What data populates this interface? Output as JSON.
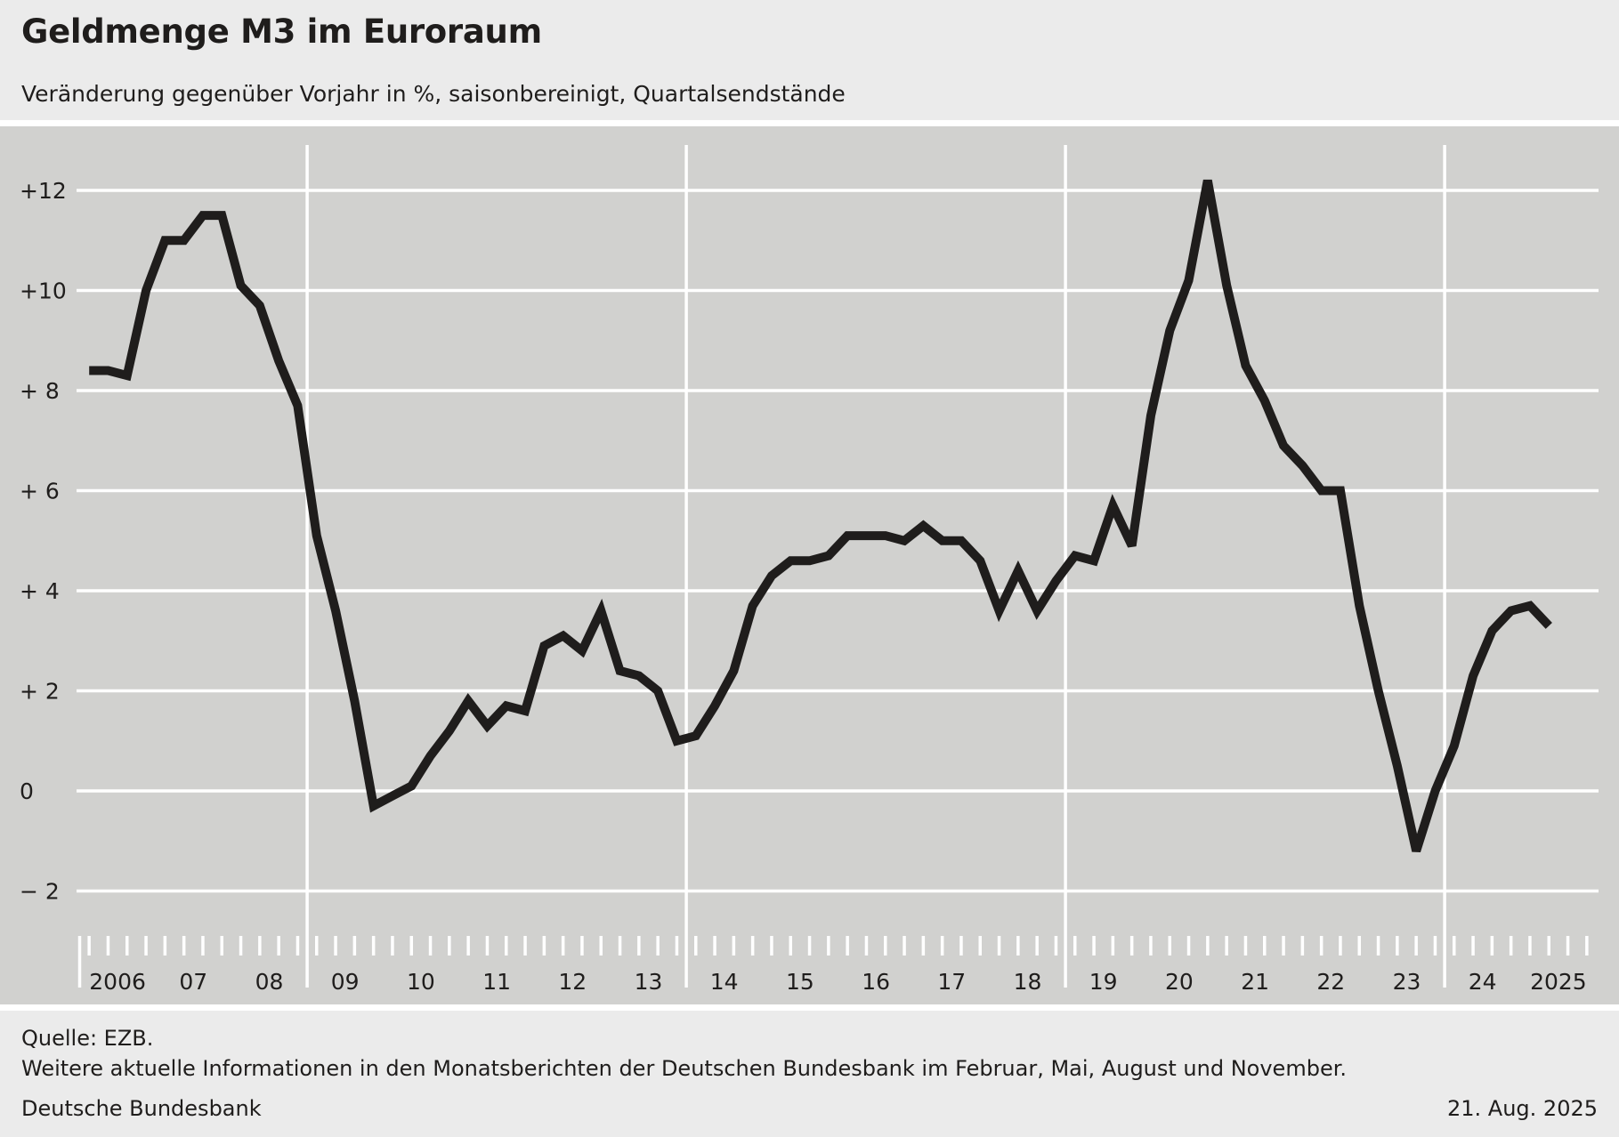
{
  "header": {
    "title": "Geldmenge M3 im Euroraum",
    "subtitle": "Veränderung gegenüber Vorjahr in %, saisonbereinigt, Quartalsendstände"
  },
  "footer": {
    "source": "Quelle: EZB.",
    "note": "Weitere aktuelle Informationen in den Monatsberichten der Deutschen Bundesbank im Februar, Mai, August und November.",
    "publisher": "Deutsche Bundesbank",
    "date": "21. Aug. 2025"
  },
  "chart_data": {
    "type": "line",
    "frequency": "quarterly",
    "title": "Geldmenge M3 im Euroraum",
    "subtitle": "Veränderung gegenüber Vorjahr in %, saisonbereinigt, Quartalsendstände",
    "ylim": [
      -3.2,
      13.0
    ],
    "yticks": [
      {
        "value": 12,
        "label": "+12"
      },
      {
        "value": 10,
        "label": "+10"
      },
      {
        "value": 8,
        "label": "+  8"
      },
      {
        "value": 6,
        "label": "+  6"
      },
      {
        "value": 4,
        "label": "+  4"
      },
      {
        "value": 2,
        "label": "+  2"
      },
      {
        "value": 0,
        "label": "0"
      },
      {
        "value": -2,
        "label": "−  2"
      }
    ],
    "year_labels": [
      "2006",
      "07",
      "08",
      "09",
      "10",
      "11",
      "12",
      "13",
      "14",
      "15",
      "16",
      "17",
      "18",
      "19",
      "20",
      "21",
      "22",
      "23",
      "24",
      "2025"
    ],
    "vertical_gridlines_after_years": [
      "08",
      "13",
      "18",
      "23"
    ],
    "grid": true,
    "line_color": "#1f1d1c",
    "plot_background": "#d1d1cf",
    "grid_color": "#ffffff",
    "series": [
      {
        "x": [
          "2006Q1",
          "2006Q2",
          "2006Q3",
          "2006Q4",
          "2007Q1",
          "2007Q2",
          "2007Q3",
          "2007Q4",
          "2008Q1",
          "2008Q2",
          "2008Q3",
          "2008Q4",
          "2009Q1",
          "2009Q2",
          "2009Q3",
          "2009Q4",
          "2010Q1",
          "2010Q2",
          "2010Q3",
          "2010Q4",
          "2011Q1",
          "2011Q2",
          "2011Q3",
          "2011Q4",
          "2012Q1",
          "2012Q2",
          "2012Q3",
          "2012Q4",
          "2013Q1",
          "2013Q2",
          "2013Q3",
          "2013Q4",
          "2014Q1",
          "2014Q2",
          "2014Q3",
          "2014Q4",
          "2015Q1",
          "2015Q2",
          "2015Q3",
          "2015Q4",
          "2016Q1",
          "2016Q2",
          "2016Q3",
          "2016Q4",
          "2017Q1",
          "2017Q2",
          "2017Q3",
          "2017Q4",
          "2018Q1",
          "2018Q2",
          "2018Q3",
          "2018Q4",
          "2019Q1",
          "2019Q2",
          "2019Q3",
          "2019Q4",
          "2020Q1",
          "2020Q2",
          "2020Q3",
          "2020Q4",
          "2021Q1",
          "2021Q2",
          "2021Q3",
          "2021Q4",
          "2022Q1",
          "2022Q2",
          "2022Q3",
          "2022Q4",
          "2023Q1",
          "2023Q2",
          "2023Q3",
          "2023Q4",
          "2024Q1",
          "2024Q2",
          "2024Q3",
          "2024Q4",
          "2025Q1",
          "2025Q2"
        ],
        "values": [
          8.4,
          8.4,
          8.3,
          10.0,
          11.0,
          11.0,
          11.5,
          11.5,
          10.1,
          9.7,
          8.6,
          7.7,
          5.1,
          3.6,
          1.8,
          -0.3,
          -0.1,
          0.1,
          0.7,
          1.2,
          1.8,
          1.3,
          1.7,
          1.6,
          2.9,
          3.1,
          2.8,
          3.6,
          2.4,
          2.3,
          2.0,
          1.0,
          1.1,
          1.7,
          2.4,
          3.7,
          4.3,
          4.6,
          4.6,
          4.7,
          5.1,
          5.1,
          5.1,
          5.0,
          5.3,
          5.0,
          5.0,
          4.6,
          3.6,
          4.4,
          3.6,
          4.2,
          4.7,
          4.6,
          5.7,
          4.9,
          7.5,
          9.2,
          10.2,
          12.2,
          10.1,
          8.5,
          7.8,
          6.9,
          6.5,
          6.0,
          6.0,
          3.7,
          2.0,
          0.5,
          -1.2,
          0.0,
          0.9,
          2.3,
          3.2,
          3.6,
          3.7,
          3.3
        ]
      }
    ]
  }
}
